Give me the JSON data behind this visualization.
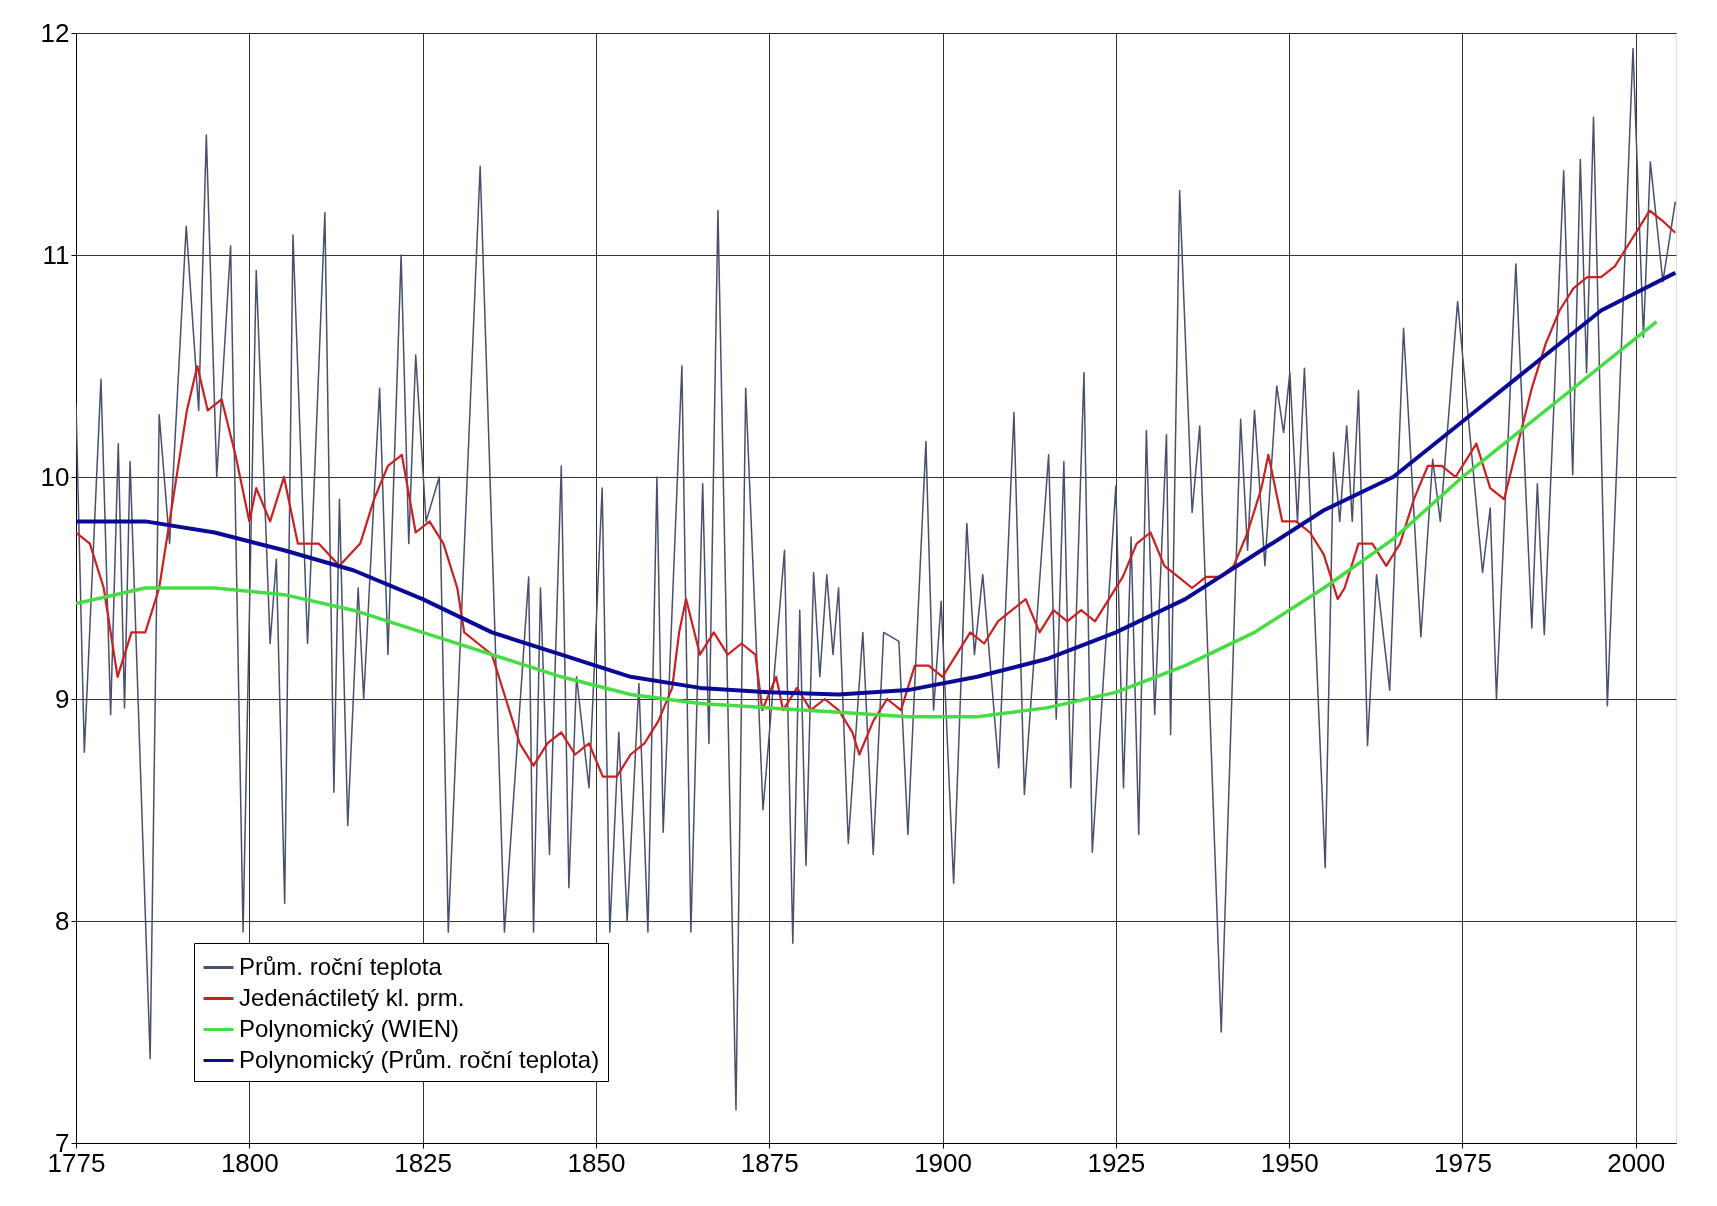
{
  "chart_data": {
    "type": "line",
    "xlim": [
      1775,
      2005.8
    ],
    "ylim": [
      7,
      12
    ],
    "xticks": [
      1775,
      1800,
      1825,
      1850,
      1875,
      1900,
      1925,
      1950,
      1975,
      2000
    ],
    "yticks": [
      7,
      8,
      9,
      10,
      11,
      12
    ],
    "grid": true,
    "legend": "bottom left",
    "marker": "none",
    "line_style": "solid",
    "series": [
      {
        "name": "Prům. roční teplota",
        "color": "#4a4f6e",
        "x": [
          1775,
          1776.2,
          1778.6,
          1780,
          1781.1,
          1782,
          1782.8,
          1785.7,
          1787,
          1788.5,
          1790.9,
          1792.7,
          1793.8,
          1795.3,
          1797.3,
          1799.1,
          1801,
          1803,
          1803.9,
          1805.1,
          1806.3,
          1808.4,
          1809.3,
          1810.9,
          1812.2,
          1813,
          1814.2,
          1815.7,
          1816.5,
          1818.8,
          1820,
          1821.9,
          1823,
          1824,
          1825.5,
          1827.4,
          1828.7,
          1833.3,
          1836.8,
          1840.3,
          1841,
          1842,
          1843.3,
          1845,
          1846.1,
          1847.2,
          1849,
          1850.9,
          1852,
          1853.3,
          1854.5,
          1856.2,
          1857.5,
          1858.8,
          1859.7,
          1862.4,
          1863.7,
          1865.4,
          1866.3,
          1867.6,
          1870.2,
          1871.6,
          1874.1,
          1877.2,
          1878.4,
          1879.4,
          1880.3,
          1881.4,
          1882.3,
          1883.3,
          1884.2,
          1885,
          1886.4,
          1888.5,
          1890,
          1891.5,
          1893.7,
          1895,
          1897.6,
          1898.7,
          1899.8,
          1901.6,
          1903.5,
          1904.6,
          1905.8,
          1908.1,
          1910.3,
          1911.8,
          1915.3,
          1916.4,
          1917.5,
          1918.5,
          1920.4,
          1921.6,
          1925,
          1926.1,
          1927.2,
          1928.3,
          1929.4,
          1930.6,
          1932.3,
          1932.9,
          1934.2,
          1936,
          1937.1,
          1940.2,
          1943,
          1944,
          1945,
          1946.5,
          1948.2,
          1949.2,
          1950.1,
          1951.2,
          1952.2,
          1955.2,
          1956.4,
          1957.3,
          1958.3,
          1959.1,
          1960,
          1961.3,
          1962.6,
          1964.5,
          1966.5,
          1969,
          1970.7,
          1971.8,
          1974.3,
          1977.9,
          1979,
          1979.9,
          1982.7,
          1985,
          1985.8,
          1986.8,
          1989.6,
          1990.9,
          1992,
          1992.9,
          1993.9,
          1995.9,
          1999.6,
          2001.1,
          2002.1,
          2003.9,
          2005.7
        ],
        "values": [
          10.33,
          8.76,
          10.44,
          8.93,
          10.15,
          8.96,
          10.07,
          7.38,
          10.28,
          9.7,
          11.13,
          10.3,
          11.54,
          10.0,
          11.04,
          7.95,
          10.93,
          9.25,
          9.63,
          8.08,
          11.09,
          9.25,
          9.92,
          11.19,
          8.58,
          9.9,
          8.43,
          9.5,
          9.0,
          10.4,
          9.2,
          11.0,
          9.7,
          10.55,
          9.8,
          10.0,
          7.95,
          11.4,
          7.95,
          9.55,
          7.95,
          9.5,
          8.3,
          10.05,
          8.15,
          9.1,
          8.6,
          9.95,
          7.95,
          8.85,
          8.0,
          9.07,
          7.95,
          10.0,
          8.4,
          10.5,
          7.95,
          9.97,
          8.8,
          11.2,
          7.15,
          10.4,
          8.5,
          9.67,
          7.9,
          9.4,
          8.25,
          9.57,
          9.1,
          9.56,
          9.2,
          9.5,
          8.35,
          9.3,
          8.3,
          9.3,
          9.26,
          8.39,
          10.16,
          8.95,
          9.44,
          8.17,
          9.79,
          9.2,
          9.56,
          8.69,
          10.29,
          8.57,
          10.1,
          8.91,
          10.07,
          8.6,
          10.47,
          8.31,
          9.96,
          8.6,
          9.73,
          8.39,
          10.21,
          8.93,
          10.19,
          8.84,
          11.29,
          9.84,
          10.23,
          7.5,
          10.26,
          9.67,
          10.3,
          9.6,
          10.41,
          10.2,
          10.47,
          9.8,
          10.49,
          8.24,
          10.11,
          9.8,
          10.23,
          9.8,
          10.39,
          8.79,
          9.56,
          9.04,
          10.67,
          9.28,
          10.08,
          9.8,
          10.79,
          9.57,
          9.86,
          9.0,
          10.96,
          9.32,
          9.97,
          9.29,
          11.38,
          10.01,
          11.43,
          10.47,
          11.62,
          8.97,
          11.93,
          10.63,
          11.42,
          10.88,
          11.24
        ]
      },
      {
        "name": "Jedenáctiletý kl. prm.",
        "color": "#cc2020",
        "x": [
          1775,
          1777,
          1779,
          1781,
          1783,
          1785,
          1787,
          1789,
          1791,
          1792.5,
          1794,
          1796,
          1798,
          1800,
          1801,
          1803,
          1805,
          1807,
          1810,
          1813,
          1816,
          1818,
          1820,
          1822,
          1824,
          1826,
          1828,
          1830,
          1831,
          1833,
          1835,
          1837,
          1839,
          1841,
          1843,
          1845,
          1847,
          1849,
          1851,
          1853,
          1855,
          1857,
          1859,
          1861,
          1862,
          1863,
          1865,
          1867,
          1869,
          1871,
          1873,
          1874,
          1876,
          1877,
          1879,
          1881,
          1883,
          1885,
          1887,
          1888,
          1890,
          1892,
          1894,
          1896,
          1898,
          1900,
          1902,
          1904,
          1906,
          1908,
          1910,
          1912,
          1914,
          1916,
          1918,
          1920,
          1922,
          1924,
          1926,
          1928,
          1930,
          1932,
          1934,
          1936,
          1938,
          1940,
          1942,
          1944,
          1946,
          1947,
          1949,
          1951,
          1953,
          1955,
          1957,
          1958,
          1960,
          1962,
          1964,
          1966,
          1968,
          1970,
          1972,
          1974,
          1976,
          1977,
          1979,
          1981,
          1983,
          1985,
          1987,
          1989,
          1991,
          1993,
          1995,
          1997,
          1998,
          2000,
          2002,
          2004,
          2005.7
        ],
        "values": [
          9.75,
          9.7,
          9.5,
          9.1,
          9.3,
          9.3,
          9.5,
          9.9,
          10.3,
          10.5,
          10.3,
          10.35,
          10.1,
          9.8,
          9.95,
          9.8,
          10.0,
          9.7,
          9.7,
          9.6,
          9.7,
          9.9,
          10.05,
          10.1,
          9.75,
          9.8,
          9.7,
          9.5,
          9.3,
          9.25,
          9.2,
          9.0,
          8.8,
          8.7,
          8.8,
          8.85,
          8.75,
          8.8,
          8.65,
          8.65,
          8.75,
          8.8,
          8.9,
          9.05,
          9.3,
          9.45,
          9.2,
          9.3,
          9.2,
          9.25,
          9.2,
          8.95,
          9.1,
          8.95,
          9.05,
          8.95,
          9.0,
          8.95,
          8.85,
          8.75,
          8.9,
          9.0,
          8.95,
          9.15,
          9.15,
          9.1,
          9.2,
          9.3,
          9.25,
          9.35,
          9.4,
          9.45,
          9.3,
          9.4,
          9.35,
          9.4,
          9.35,
          9.45,
          9.55,
          9.7,
          9.75,
          9.6,
          9.55,
          9.5,
          9.55,
          9.55,
          9.6,
          9.75,
          9.95,
          10.1,
          9.8,
          9.8,
          9.75,
          9.65,
          9.45,
          9.5,
          9.7,
          9.7,
          9.6,
          9.7,
          9.9,
          10.05,
          10.05,
          10.0,
          10.1,
          10.15,
          9.95,
          9.9,
          10.15,
          10.4,
          10.6,
          10.75,
          10.85,
          10.9,
          10.9,
          10.95,
          11.0,
          11.1,
          11.2,
          11.15,
          11.1
        ]
      },
      {
        "name": "Polynomický (WIEN)",
        "color": "#44dd44",
        "x": [
          1775,
          1785,
          1795,
          1805,
          1815,
          1825,
          1835,
          1845,
          1855,
          1865,
          1875,
          1885,
          1895,
          1905,
          1915,
          1925,
          1935,
          1945,
          1955,
          1965,
          1975,
          1985,
          1995,
          2003
        ],
        "values": [
          9.43,
          9.5,
          9.5,
          9.47,
          9.4,
          9.3,
          9.2,
          9.1,
          9.02,
          8.98,
          8.96,
          8.94,
          8.92,
          8.92,
          8.96,
          9.03,
          9.15,
          9.3,
          9.5,
          9.72,
          10.0,
          10.25,
          10.5,
          10.7
        ]
      },
      {
        "name": "Polynomický (Prům. roční teplota)",
        "color": "#0a0a96",
        "x": [
          1775,
          1785,
          1795,
          1805,
          1815,
          1825,
          1835,
          1845,
          1855,
          1865,
          1875,
          1885,
          1895,
          1905,
          1915,
          1925,
          1935,
          1945,
          1955,
          1965,
          1975,
          1985,
          1995,
          2005.7
        ],
        "values": [
          9.8,
          9.8,
          9.75,
          9.67,
          9.58,
          9.45,
          9.3,
          9.2,
          9.1,
          9.05,
          9.03,
          9.02,
          9.04,
          9.1,
          9.18,
          9.3,
          9.45,
          9.65,
          9.85,
          10.0,
          10.25,
          10.5,
          10.75,
          10.92
        ]
      }
    ]
  }
}
